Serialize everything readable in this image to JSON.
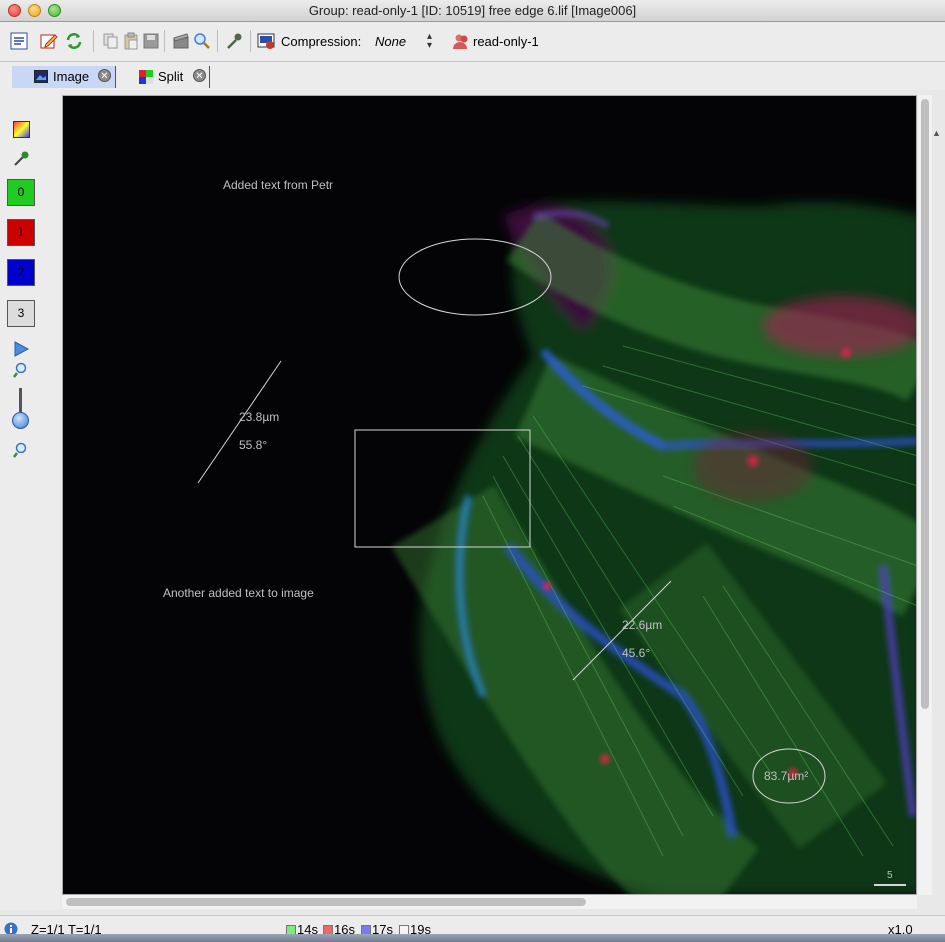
{
  "window": {
    "title": "Group: read-only-1 [ID: 10519] free edge 6.lif [Image006]"
  },
  "toolbar": {
    "compression_label": "Compression:",
    "compression_value": "None",
    "group_label": "read-only-1"
  },
  "tabs": [
    {
      "label": "Image",
      "active": true
    },
    {
      "label": "Split",
      "active": false
    }
  ],
  "sidebar": {
    "channels": [
      {
        "label": "0",
        "color": "#1fcc1f"
      },
      {
        "label": "1",
        "color": "#cc0000"
      },
      {
        "label": "2",
        "color": "#0000cc"
      },
      {
        "label": "3",
        "color": "#dcdcdc"
      }
    ]
  },
  "annotations": {
    "text1": "Added text from Petr",
    "text2": "Another added text to image",
    "line1_length": "23.8µm",
    "line1_angle": "55.8°",
    "line2_length": "22.6µm",
    "line2_angle": "45.6°",
    "ellipse_area": "83.7µm²",
    "scalebar_label": "5"
  },
  "status": {
    "position": "Z=1/1 T=1/1",
    "timings": [
      {
        "label": "14s",
        "color": "#7dea7d"
      },
      {
        "label": "16s",
        "color": "#ea6a6a"
      },
      {
        "label": "17s",
        "color": "#7a7aea"
      },
      {
        "label": "19s",
        "color": "#f4f4f4"
      }
    ],
    "zoom": "x1.0"
  }
}
